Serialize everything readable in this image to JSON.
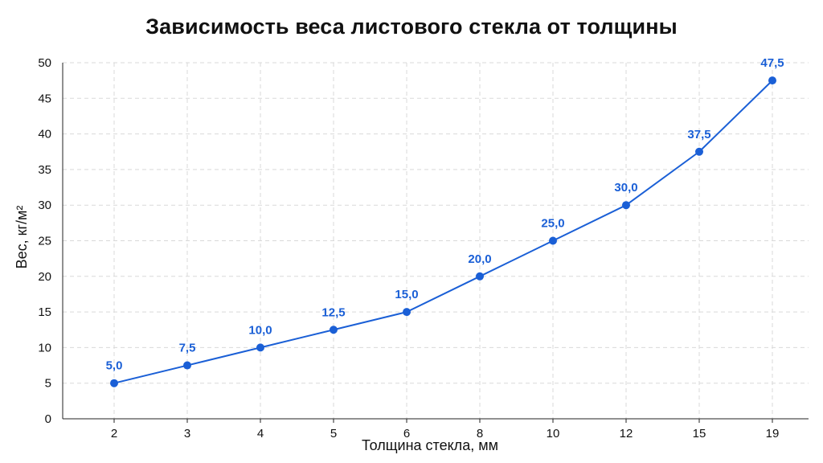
{
  "chart_data": {
    "type": "line",
    "title": "Зависимость веса листового стекла от толщины",
    "xlabel": "Толщина стекла, мм",
    "ylabel": "Вес, кг/м²",
    "categories": [
      "2",
      "3",
      "4",
      "5",
      "6",
      "8",
      "10",
      "12",
      "15",
      "19"
    ],
    "series": [
      {
        "values": [
          5.0,
          7.5,
          10.0,
          12.5,
          15.0,
          20.0,
          25.0,
          30.0,
          37.5,
          47.5
        ],
        "labels": [
          "5,0",
          "7,5",
          "10,0",
          "12,5",
          "15,0",
          "20,0",
          "25,0",
          "30,0",
          "37,5",
          "47,5"
        ]
      }
    ],
    "ylim": [
      0,
      50
    ],
    "yticks": [
      "0",
      "5",
      "10",
      "15",
      "20",
      "25",
      "30",
      "35",
      "40",
      "45",
      "50"
    ],
    "grid": true,
    "grid_style": "dashed",
    "legend": "none",
    "colors": {
      "line": "#1a5fd6",
      "marker": "#1a5fd6",
      "label": "#1a5fd6",
      "grid": "#d9d9d9",
      "axis": "#222222"
    }
  }
}
